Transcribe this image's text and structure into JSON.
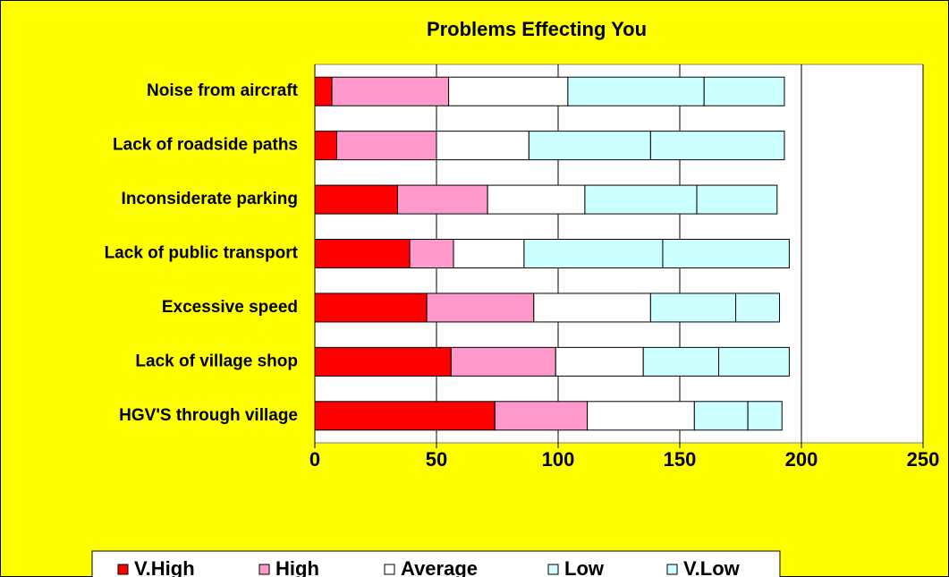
{
  "chart_data": {
    "type": "stacked-bar-horizontal",
    "title": "Problems Effecting You",
    "categories": [
      "Noise from aircraft",
      "Lack of roadside paths",
      "Inconsiderate parking",
      "Lack of public transport",
      "Excessive speed",
      "Lack of village shop",
      "HGV'S through village"
    ],
    "series": [
      {
        "name": "V.High",
        "color": "#ff0000",
        "values": [
          7,
          9,
          34,
          39,
          46,
          56,
          74
        ]
      },
      {
        "name": "High",
        "color": "#ff99cc",
        "values": [
          48,
          41,
          37,
          18,
          44,
          43,
          38
        ]
      },
      {
        "name": "Average",
        "color": "#ffffff",
        "values": [
          49,
          38,
          40,
          29,
          48,
          36,
          44
        ]
      },
      {
        "name": "Low",
        "color": "#ccffff",
        "values": [
          56,
          50,
          46,
          57,
          35,
          31,
          22
        ]
      },
      {
        "name": "V.Low",
        "color": "#ccffff",
        "values": [
          33,
          55,
          33,
          52,
          18,
          29,
          14
        ]
      }
    ],
    "xlim": [
      0,
      250
    ],
    "xticks": [
      0,
      50,
      100,
      150,
      200,
      250
    ],
    "grid": true,
    "legend": "bottom"
  }
}
